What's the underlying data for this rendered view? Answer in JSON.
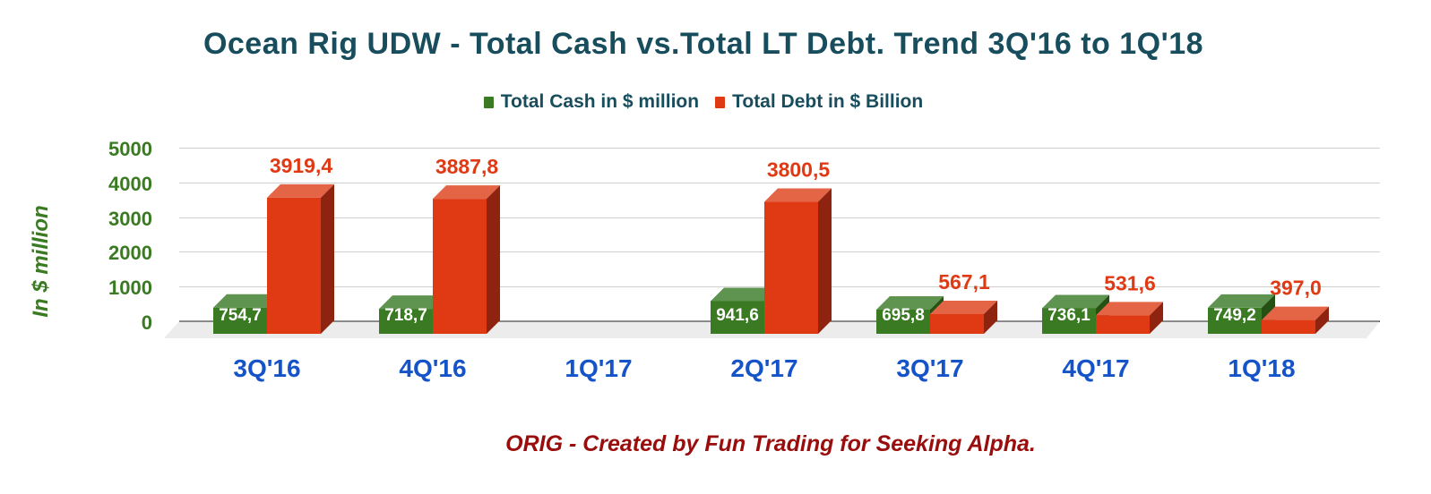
{
  "title": "Ocean Rig UDW - Total Cash vs.Total LT Debt. Trend 3Q'16 to 1Q'18",
  "legend": {
    "items": [
      {
        "label": "Total Cash in $ million",
        "color": "#3a7a22"
      },
      {
        "label": "Total Debt in $ Billion",
        "color": "#df3a14"
      }
    ]
  },
  "y_axis": {
    "label": "In $ million",
    "ticks": [
      "5000",
      "4000",
      "3000",
      "2000",
      "1000",
      "0"
    ]
  },
  "x_axis": {
    "ticks": [
      "3Q'16",
      "4Q'16",
      "1Q'17",
      "2Q'17",
      "3Q'17",
      "4Q'17",
      "1Q'18"
    ]
  },
  "footer": "ORIG - Created by Fun Trading for Seeking Alpha.",
  "colors": {
    "cash_front": "#3a7a22",
    "cash_top": "#5f9450",
    "cash_side": "#255214",
    "debt_front": "#df3a14",
    "debt_top": "#e46446",
    "debt_side": "#8e2410",
    "debt_label": "#e03a14",
    "title": "#174d5c",
    "xtick": "#1553c9",
    "ytick": "#3a7a22",
    "footer": "#9a0d0d"
  },
  "chart_data": {
    "type": "bar",
    "title": "Ocean Rig UDW - Total Cash vs.Total LT Debt. Trend 3Q'16 to 1Q'18",
    "xlabel": "",
    "ylabel": "In $ million",
    "ylim": [
      0,
      5000
    ],
    "yticks": [
      0,
      1000,
      2000,
      3000,
      4000,
      5000
    ],
    "grid": true,
    "legend_position": "top",
    "style": "3d-clustered-column",
    "categories": [
      "3Q'16",
      "4Q'16",
      "1Q'17",
      "2Q'17",
      "3Q'17",
      "4Q'17",
      "1Q'18"
    ],
    "series": [
      {
        "name": "Total Cash in $ million",
        "values": [
          754.7,
          718.7,
          null,
          941.6,
          695.8,
          736.1,
          749.2
        ],
        "labels": [
          "754,7",
          "718,7",
          "",
          "941,6",
          "695,8",
          "736,1",
          "749,2"
        ]
      },
      {
        "name": "Total Debt in $ Billion",
        "values": [
          3919.4,
          3887.8,
          null,
          3800.5,
          567.1,
          531.6,
          397.0
        ],
        "labels": [
          "3919,4",
          "3887,8",
          "",
          "3800,5",
          "567,1",
          "531,6",
          "397,0"
        ]
      }
    ],
    "annotations": [
      "ORIG - Created by Fun Trading for Seeking Alpha."
    ]
  }
}
